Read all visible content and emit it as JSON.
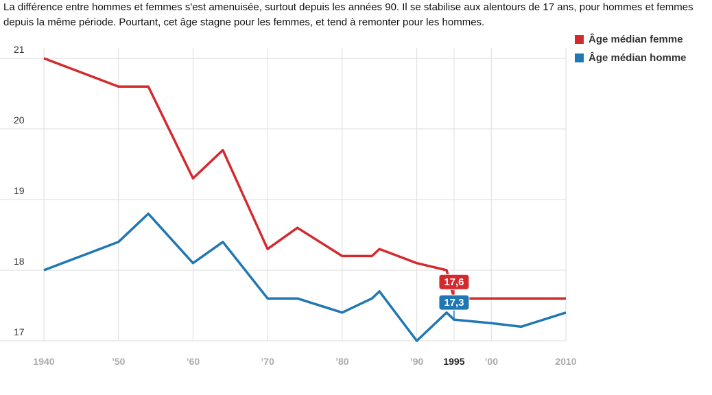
{
  "chart_data": {
    "type": "line",
    "subtitle": "La différence entre hommes et femmes s'est amenuisée, surtout depuis les années 90. Il se stabilise aux alentours de 17 ans, pour hommes et femmes depuis la même période. Pourtant, cet âge stagne pour les femmes, et tend à remonter pour les hommes.",
    "xlim": [
      1940,
      2010
    ],
    "ylim": [
      17,
      21
    ],
    "yticks": [
      17,
      18,
      19,
      20,
      21
    ],
    "xticks": [
      {
        "value": 1940,
        "label": "1940"
      },
      {
        "value": 1950,
        "label": "’50"
      },
      {
        "value": 1960,
        "label": "’60"
      },
      {
        "value": 1970,
        "label": "’70"
      },
      {
        "value": 1980,
        "label": "’80"
      },
      {
        "value": 1990,
        "label": "’90"
      },
      {
        "value": 1995,
        "label": "1995",
        "highlight": true
      },
      {
        "value": 2000,
        "label": "’00"
      },
      {
        "value": 2010,
        "label": "2010"
      }
    ],
    "series": [
      {
        "name": "Âge médian femme",
        "color": "#d42a2e",
        "x": [
          1940,
          1950,
          1954,
          1960,
          1964,
          1970,
          1974,
          1980,
          1984,
          1985,
          1990,
          1994,
          1995,
          2000,
          2004,
          2010
        ],
        "values": [
          21.0,
          20.6,
          20.6,
          19.3,
          19.7,
          18.3,
          18.6,
          18.2,
          18.2,
          18.3,
          18.1,
          18.0,
          17.6,
          17.6,
          17.6,
          17.6
        ]
      },
      {
        "name": "Âge médian homme",
        "color": "#1f77b4",
        "x": [
          1940,
          1950,
          1954,
          1960,
          1964,
          1970,
          1974,
          1980,
          1984,
          1985,
          1990,
          1994,
          1995,
          2000,
          2004,
          2010
        ],
        "values": [
          18.0,
          18.4,
          18.8,
          18.1,
          18.4,
          17.6,
          17.6,
          17.4,
          17.6,
          17.7,
          17.0,
          17.4,
          17.3,
          17.25,
          17.2,
          17.4
        ]
      }
    ],
    "data_labels": [
      {
        "series": 0,
        "x": 1995,
        "text": "17,6"
      },
      {
        "series": 1,
        "x": 1995,
        "text": "17,3"
      }
    ]
  }
}
